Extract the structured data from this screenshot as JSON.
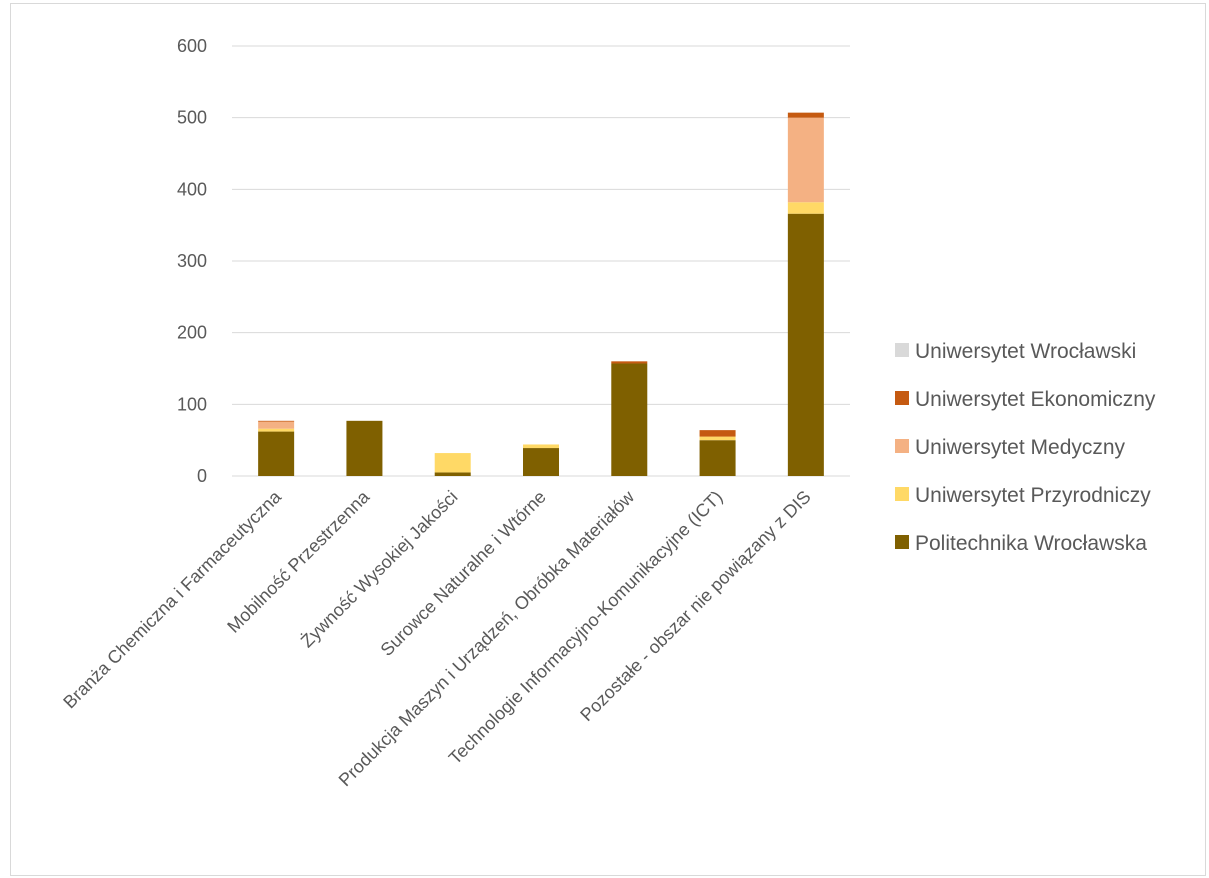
{
  "chart_data": {
    "type": "bar",
    "stacked": true,
    "title": "",
    "xlabel": "",
    "ylabel": "",
    "ylim": [
      0,
      600
    ],
    "yticks": [
      0,
      100,
      200,
      300,
      400,
      500,
      600
    ],
    "grid": true,
    "legend_position": "right",
    "categories": [
      "Branża Chemiczna i Farmaceutyczna",
      "Mobilność Przestrzenna",
      "Żywność Wysokiej Jakości",
      "Surowce Naturalne i Wtórne",
      "Produkcja Maszyn i Urządzeń, Obróbka Materiałów",
      "Technologie Informacyjno-Komunikacyjne (ICT)",
      "Pozostałe - obszar nie powiązany z DIS"
    ],
    "series": [
      {
        "name": "Politechnika Wrocławska",
        "color": "#7f6000",
        "values": [
          62,
          77,
          5,
          39,
          157,
          50,
          366
        ]
      },
      {
        "name": "Uniwersytet Przyrodniczy",
        "color": "#ffd966",
        "values": [
          4,
          0,
          27,
          5,
          0,
          5,
          16
        ]
      },
      {
        "name": "Uniwersytet Medyczny",
        "color": "#f4b183",
        "values": [
          10,
          0,
          0,
          0,
          0,
          0,
          118
        ]
      },
      {
        "name": "Uniwersytet Ekonomiczny",
        "color": "#c55a11",
        "values": [
          1,
          0,
          0,
          0,
          3,
          9,
          7
        ]
      },
      {
        "name": "Uniwersytet Wrocławski",
        "color": "#d9d9d9",
        "values": [
          0,
          0,
          0,
          0,
          0,
          0,
          0
        ]
      }
    ],
    "legend_order": [
      "Uniwersytet Wrocławski",
      "Uniwersytet Ekonomiczny",
      "Uniwersytet Medyczny",
      "Uniwersytet Przyrodniczy",
      "Politechnika Wrocławska"
    ]
  }
}
